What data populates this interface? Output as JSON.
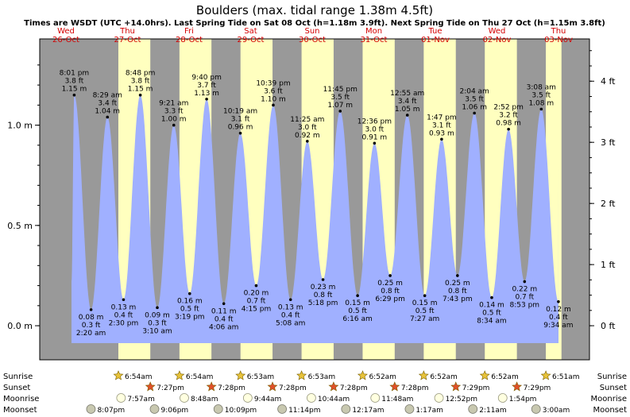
{
  "chart_data": {
    "type": "area",
    "title": "Boulders (max. tidal range 1.38m 4.5ft)",
    "subtitle": "Times are WSDT (UTC +14.0hrs). Last Spring Tide on Sat 08 Oct (h=1.18m 3.9ft). Next Spring Tide on Thu 27 Oct (h=1.15m 3.8ft)",
    "days": [
      {
        "dow": "Wed",
        "date": "26-Oct"
      },
      {
        "dow": "Thu",
        "date": "27-Oct"
      },
      {
        "dow": "Fri",
        "date": "28-Oct"
      },
      {
        "dow": "Sat",
        "date": "29-Oct"
      },
      {
        "dow": "Sun",
        "date": "30-Oct"
      },
      {
        "dow": "Mon",
        "date": "31-Oct"
      },
      {
        "dow": "Tue",
        "date": "01-Nov"
      },
      {
        "dow": "Wed",
        "date": "02-Nov"
      },
      {
        "dow": "Thu",
        "date": "03-Nov"
      }
    ],
    "tides": [
      {
        "time": "8:01 pm",
        "ft": "3.8 ft",
        "m": "1.15 m",
        "h": 1.15,
        "t": 20.02,
        "kind": "high"
      },
      {
        "time": "2:20 am",
        "ft": "0.3 ft",
        "m": "0.08 m",
        "h": 0.08,
        "t": 26.33,
        "kind": "low"
      },
      {
        "time": "8:29 am",
        "ft": "3.4 ft",
        "m": "1.04 m",
        "h": 1.04,
        "t": 32.48,
        "kind": "high"
      },
      {
        "time": "2:30 pm",
        "ft": "0.4 ft",
        "m": "0.13 m",
        "h": 0.13,
        "t": 38.5,
        "kind": "low"
      },
      {
        "time": "8:48 pm",
        "ft": "3.8 ft",
        "m": "1.15 m",
        "h": 1.15,
        "t": 44.8,
        "kind": "high"
      },
      {
        "time": "3:10 am",
        "ft": "0.3 ft",
        "m": "0.09 m",
        "h": 0.09,
        "t": 51.17,
        "kind": "low"
      },
      {
        "time": "9:21 am",
        "ft": "3.3 ft",
        "m": "1.00 m",
        "h": 1.0,
        "t": 57.35,
        "kind": "high"
      },
      {
        "time": "3:19 pm",
        "ft": "0.5 ft",
        "m": "0.16 m",
        "h": 0.16,
        "t": 63.32,
        "kind": "low"
      },
      {
        "time": "9:40 pm",
        "ft": "3.7 ft",
        "m": "1.13 m",
        "h": 1.13,
        "t": 69.67,
        "kind": "high"
      },
      {
        "time": "4:06 am",
        "ft": "0.4 ft",
        "m": "0.11 m",
        "h": 0.11,
        "t": 76.1,
        "kind": "low"
      },
      {
        "time": "10:19 am",
        "ft": "3.1 ft",
        "m": "0.96 m",
        "h": 0.96,
        "t": 82.32,
        "kind": "high"
      },
      {
        "time": "4:15 pm",
        "ft": "0.7 ft",
        "m": "0.20 m",
        "h": 0.2,
        "t": 88.25,
        "kind": "low"
      },
      {
        "time": "10:39 pm",
        "ft": "3.6 ft",
        "m": "1.10 m",
        "h": 1.1,
        "t": 94.65,
        "kind": "high"
      },
      {
        "time": "5:08 am",
        "ft": "0.4 ft",
        "m": "0.13 m",
        "h": 0.13,
        "t": 101.13,
        "kind": "low"
      },
      {
        "time": "11:25 am",
        "ft": "3.0 ft",
        "m": "0.92 m",
        "h": 0.92,
        "t": 107.42,
        "kind": "high"
      },
      {
        "time": "5:18 pm",
        "ft": "0.8 ft",
        "m": "0.23 m",
        "h": 0.23,
        "t": 113.3,
        "kind": "low"
      },
      {
        "time": "11:45 pm",
        "ft": "3.5 ft",
        "m": "1.07 m",
        "h": 1.07,
        "t": 119.75,
        "kind": "high"
      },
      {
        "time": "6:16 am",
        "ft": "0.5 ft",
        "m": "0.15 m",
        "h": 0.15,
        "t": 126.27,
        "kind": "low"
      },
      {
        "time": "12:36 pm",
        "ft": "3.0 ft",
        "m": "0.91 m",
        "h": 0.91,
        "t": 132.6,
        "kind": "high"
      },
      {
        "time": "6:29 pm",
        "ft": "0.8 ft",
        "m": "0.25 m",
        "h": 0.25,
        "t": 138.48,
        "kind": "low"
      },
      {
        "time": "12:55 am",
        "ft": "3.4 ft",
        "m": "1.05 m",
        "h": 1.05,
        "t": 144.92,
        "kind": "high"
      },
      {
        "time": "7:27 am",
        "ft": "0.5 ft",
        "m": "0.15 m",
        "h": 0.15,
        "t": 151.45,
        "kind": "low"
      },
      {
        "time": "1:47 pm",
        "ft": "3.1 ft",
        "m": "0.93 m",
        "h": 0.93,
        "t": 157.78,
        "kind": "high"
      },
      {
        "time": "7:43 pm",
        "ft": "0.8 ft",
        "m": "0.25 m",
        "h": 0.25,
        "t": 163.72,
        "kind": "low"
      },
      {
        "time": "2:04 am",
        "ft": "3.5 ft",
        "m": "1.06 m",
        "h": 1.06,
        "t": 170.07,
        "kind": "high"
      },
      {
        "time": "8:34 am",
        "ft": "0.5 ft",
        "m": "0.14 m",
        "h": 0.14,
        "t": 176.57,
        "kind": "low"
      },
      {
        "time": "2:52 pm",
        "ft": "3.2 ft",
        "m": "0.98 m",
        "h": 0.98,
        "t": 182.87,
        "kind": "high"
      },
      {
        "time": "8:53 pm",
        "ft": "0.7 ft",
        "m": "0.22 m",
        "h": 0.22,
        "t": 188.88,
        "kind": "low"
      },
      {
        "time": "3:08 am",
        "ft": "3.5 ft",
        "m": "1.08 m",
        "h": 1.08,
        "t": 195.13,
        "kind": "high"
      },
      {
        "time": "9:34 am",
        "ft": "0.4 ft",
        "m": "0.12 m",
        "h": 0.12,
        "t": 201.57,
        "kind": "low"
      }
    ],
    "daylight": [
      {
        "sunrise": 30.9,
        "sunset": 43.45
      },
      {
        "sunrise": 54.9,
        "sunset": 67.47
      },
      {
        "sunrise": 78.88,
        "sunset": 91.47
      },
      {
        "sunrise": 102.88,
        "sunset": 115.47
      },
      {
        "sunrise": 126.87,
        "sunset": 139.47
      },
      {
        "sunrise": 150.87,
        "sunset": 163.48
      },
      {
        "sunrise": 174.87,
        "sunset": 187.48
      },
      {
        "sunrise": 198.85,
        "sunset": 205
      }
    ],
    "m_ticks": [
      {
        "label": "0.0 m",
        "v": 0
      },
      {
        "label": "0.5 m",
        "v": 0.5
      },
      {
        "label": "1.0 m",
        "v": 1.0
      }
    ],
    "ft_ticks": [
      {
        "label": "0 ft",
        "v": 0
      },
      {
        "label": "1 ft",
        "v": 1
      },
      {
        "label": "2 ft",
        "v": 2
      },
      {
        "label": "3 ft",
        "v": 3
      },
      {
        "label": "4 ft",
        "v": 4
      }
    ],
    "x_range_hours": [
      0,
      216
    ],
    "y_range_m": [
      -0.17,
      1.43
    ],
    "colors": {
      "night": "#999999",
      "day": "#ffffbf",
      "water": "#a0b0ff",
      "dayLabel": "#d40000",
      "frame": "#000000"
    },
    "astro": {
      "labels": {
        "sunrise": "Sunrise",
        "sunset": "Sunset",
        "moonrise": "Moonrise",
        "moonset": "Moonset"
      },
      "sunrise": [
        {
          "time": "6:54am",
          "t": 30.9
        },
        {
          "time": "6:54am",
          "t": 54.9
        },
        {
          "time": "6:53am",
          "t": 78.88
        },
        {
          "time": "6:53am",
          "t": 102.88
        },
        {
          "time": "6:52am",
          "t": 126.87
        },
        {
          "time": "6:52am",
          "t": 150.87
        },
        {
          "time": "6:52am",
          "t": 174.87
        },
        {
          "time": "6:51am",
          "t": 198.85
        }
      ],
      "sunset": [
        {
          "time": "7:27pm",
          "t": 43.45
        },
        {
          "time": "7:28pm",
          "t": 67.47
        },
        {
          "time": "7:28pm",
          "t": 91.47
        },
        {
          "time": "7:28pm",
          "t": 115.47
        },
        {
          "time": "7:28pm",
          "t": 139.47
        },
        {
          "time": "7:29pm",
          "t": 163.48
        },
        {
          "time": "7:29pm",
          "t": 187.48
        }
      ],
      "moonrise": [
        {
          "time": "7:57am",
          "t": 31.95
        },
        {
          "time": "8:48am",
          "t": 56.8
        },
        {
          "time": "9:44am",
          "t": 81.73
        },
        {
          "time": "10:44am",
          "t": 106.73
        },
        {
          "time": "11:48am",
          "t": 131.8
        },
        {
          "time": "12:52pm",
          "t": 156.87
        },
        {
          "time": "1:54pm",
          "t": 181.9
        }
      ],
      "moonset": [
        {
          "time": "8:07pm",
          "t": 20.12
        },
        {
          "time": "9:06pm",
          "t": 45.1
        },
        {
          "time": "10:09pm",
          "t": 70.15
        },
        {
          "time": "11:14pm",
          "t": 95.23
        },
        {
          "time": "12:17am",
          "t": 120.28
        },
        {
          "time": "1:17am",
          "t": 145.28
        },
        {
          "time": "2:11am",
          "t": 170.18
        },
        {
          "time": "3:00am",
          "t": 195.0
        }
      ]
    }
  }
}
